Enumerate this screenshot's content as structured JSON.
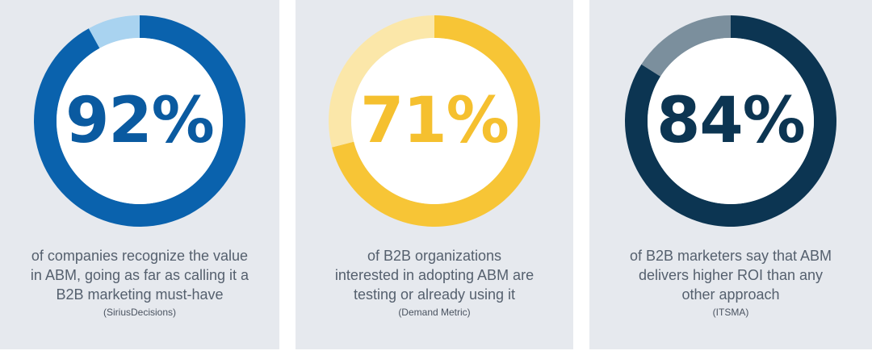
{
  "chart_data": [
    {
      "type": "pie",
      "value": 92,
      "value_label": "92%",
      "colors": {
        "fill": "#0a62ad",
        "remainder": "#a9d3f0",
        "text": "#0a5aa0"
      },
      "description_lines": [
        "of companies recognize the value",
        "in ABM, going as far as calling it a",
        "B2B marketing must-have"
      ],
      "source": "(SiriusDecisions)"
    },
    {
      "type": "pie",
      "value": 71,
      "value_label": "71%",
      "colors": {
        "fill": "#f7c536",
        "remainder": "#fbe7a9",
        "text": "#f5c02f"
      },
      "description_lines": [
        "of B2B organizations",
        "interested in adopting ABM are",
        "testing or already using it"
      ],
      "source": "(Demand Metric)"
    },
    {
      "type": "pie",
      "value": 84,
      "value_label": "84%",
      "colors": {
        "fill": "#0c3552",
        "remainder": "#7b8f9d",
        "text": "#0c3552"
      },
      "description_lines": [
        "of B2B marketers say that ABM",
        "delivers higher ROI than any",
        "other approach"
      ],
      "source": "(ITSMA)"
    }
  ]
}
